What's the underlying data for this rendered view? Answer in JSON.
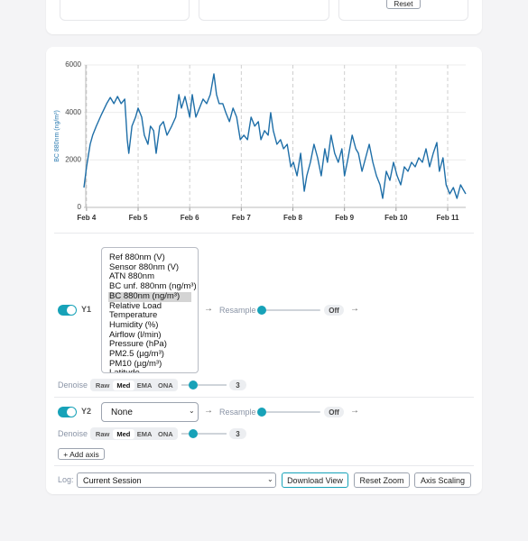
{
  "top_panel": {
    "reset_button": "Reset"
  },
  "chart_data": {
    "type": "line",
    "y_label": "BC 880nm (ng/m³)",
    "color": "#1f6fa8",
    "x": [
      3.95,
      4.0,
      4.07,
      4.12,
      4.19,
      4.28,
      4.39,
      4.46,
      4.53,
      4.6,
      4.67,
      4.74,
      4.79,
      4.82,
      4.88,
      4.95,
      5.0,
      5.07,
      5.12,
      5.19,
      5.24,
      5.3,
      5.35,
      5.42,
      5.49,
      5.56,
      5.65,
      5.73,
      5.79,
      5.84,
      5.91,
      6.0,
      6.05,
      6.12,
      6.19,
      6.26,
      6.33,
      6.4,
      6.47,
      6.52,
      6.57,
      6.64,
      6.7,
      6.77,
      6.84,
      6.91,
      6.98,
      7.05,
      7.12,
      7.19,
      7.26,
      7.33,
      7.38,
      7.45,
      7.52,
      7.57,
      7.62,
      7.69,
      7.76,
      7.82,
      7.89,
      7.96,
      8.01,
      8.08,
      8.15,
      8.22,
      8.27,
      8.34,
      8.41,
      8.48,
      8.55,
      8.62,
      8.67,
      8.74,
      8.81,
      8.88,
      8.95,
      9.0,
      9.07,
      9.15,
      9.22,
      9.27,
      9.34,
      9.41,
      9.48,
      9.55,
      9.62,
      9.69,
      9.74,
      9.81,
      9.88,
      9.95,
      10.02,
      10.09,
      10.16,
      10.23,
      10.3,
      10.37,
      10.44,
      10.51,
      10.58,
      10.65,
      10.72,
      10.79,
      10.84,
      10.91,
      10.97,
      11.04,
      11.11,
      11.18,
      11.25,
      11.3,
      11.35
    ],
    "values": [
      835,
      1710,
      2660,
      3040,
      3420,
      3870,
      4370,
      4630,
      4370,
      4670,
      4370,
      4560,
      2850,
      2280,
      3420,
      3800,
      4180,
      3800,
      3040,
      2660,
      3420,
      3230,
      2280,
      3420,
      3610,
      3040,
      3420,
      3800,
      4750,
      4180,
      4670,
      3800,
      4750,
      3800,
      4180,
      4560,
      4370,
      4750,
      5620,
      4750,
      4370,
      4370,
      3990,
      3610,
      4180,
      3800,
      2850,
      3040,
      2850,
      3800,
      3420,
      3610,
      2850,
      3230,
      3040,
      3990,
      3230,
      2660,
      2850,
      2470,
      2660,
      1710,
      1900,
      1330,
      2280,
      680,
      1330,
      1900,
      2660,
      2090,
      1330,
      2470,
      1900,
      3040,
      2280,
      1900,
      2470,
      1330,
      2090,
      3040,
      2470,
      2280,
      1520,
      2090,
      2660,
      1900,
      1330,
      950,
      380,
      1520,
      1140,
      1900,
      1330,
      950,
      1710,
      1520,
      1900,
      1710,
      2090,
      1900,
      2470,
      1710,
      2280,
      2730,
      1520,
      2090,
      950,
      570,
      835,
      380,
      950,
      760,
      570
    ],
    "xlim": [
      3.95,
      11.35
    ],
    "xticks": [
      {
        "value": 4,
        "label": "Feb 4"
      },
      {
        "value": 5,
        "label": "Feb 5"
      },
      {
        "value": 6,
        "label": "Feb 6"
      },
      {
        "value": 7,
        "label": "Feb 7"
      },
      {
        "value": 8,
        "label": "Feb 8"
      },
      {
        "value": 9,
        "label": "Feb 9"
      },
      {
        "value": 10,
        "label": "Feb 10"
      },
      {
        "value": 11,
        "label": "Feb 11"
      }
    ],
    "ylim": [
      0,
      6000
    ],
    "yticks": [
      0,
      2000,
      4000,
      6000
    ],
    "grid": true
  },
  "controls": {
    "y1": {
      "label": "Y1",
      "options": [
        "Ref 880nm (V)",
        "Sensor 880nm (V)",
        "ATN 880nm",
        "BC unf. 880nm (ng/m³)",
        "BC 880nm (ng/m³)",
        "Relative Load",
        "Temperature",
        "Humidity (%)",
        "Airflow (l/min)",
        "Pressure (hPa)",
        "PM2.5 (µg/m³)",
        "PM10 (µg/m³)",
        "Latitude"
      ],
      "selected": 4,
      "resample_label": "Resample",
      "resample_value": "Off",
      "denoise": {
        "label": "Denoise",
        "modes": [
          "Raw",
          "Med",
          "EMA",
          "ONA"
        ],
        "selected": 1,
        "value": 3
      }
    },
    "y2": {
      "label": "Y2",
      "select": "None",
      "resample_label": "Resample",
      "resample_value": "Off",
      "denoise": {
        "label": "Denoise",
        "modes": [
          "Raw",
          "Med",
          "EMA",
          "ONA"
        ],
        "selected": 1,
        "value": 3
      }
    },
    "add_axis": "+ Add axis",
    "log_label": "Log:",
    "log_select": "Current Session",
    "buttons": [
      "Download View",
      "Reset Zoom",
      "Axis Scaling"
    ]
  }
}
